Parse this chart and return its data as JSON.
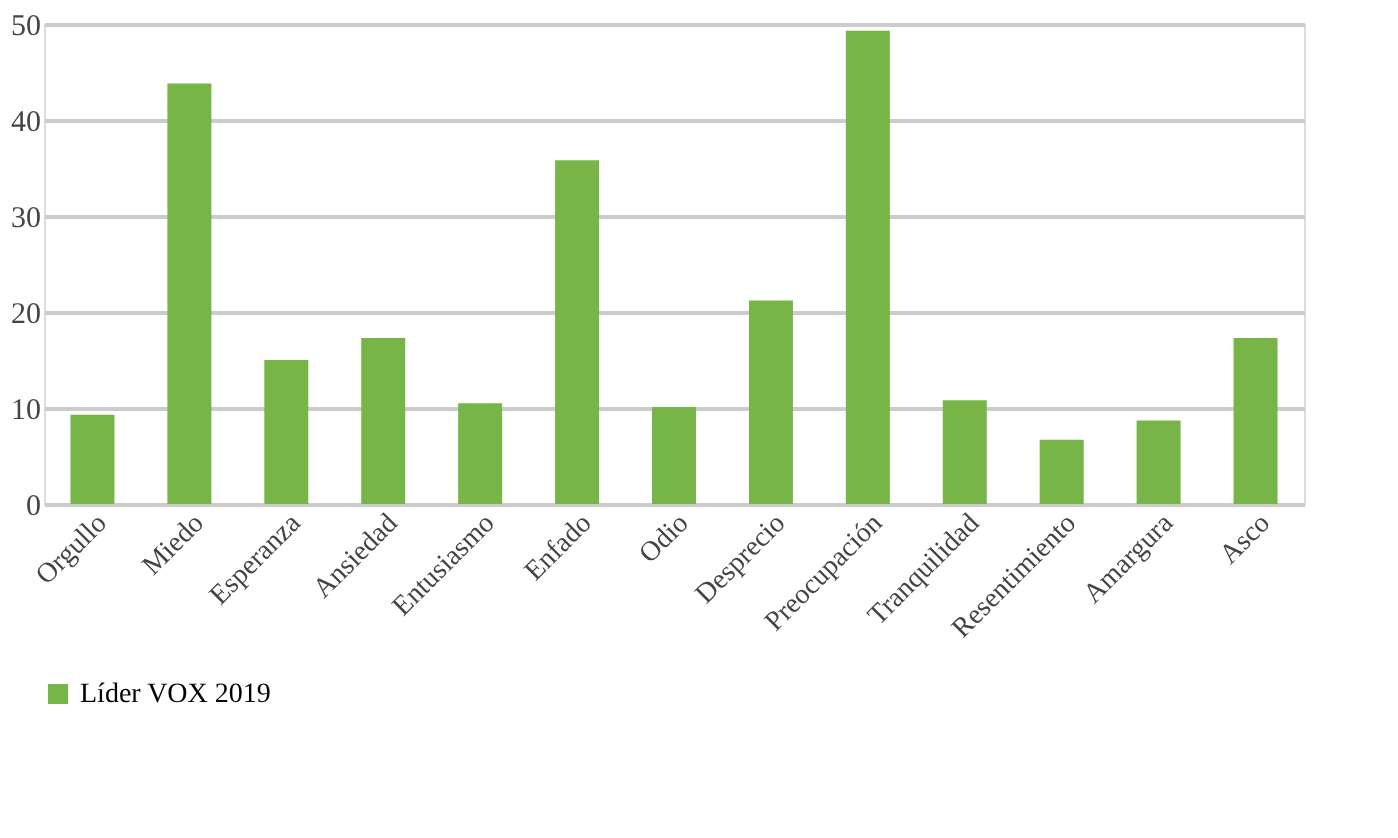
{
  "chart_data": {
    "type": "bar",
    "categories": [
      "Orgullo",
      "Miedo",
      "Esperanza",
      "Ansiedad",
      "Entusiasmo",
      "Enfado",
      "Odio",
      "Desprecio",
      "Preocupación",
      "Tranquilidad",
      "Resentimiento",
      "Amargura",
      "Asco"
    ],
    "series": [
      {
        "name": "Líder VOX 2019",
        "color": "#78b548",
        "values": [
          9.3,
          43.8,
          15,
          17.3,
          10.5,
          35.8,
          10.1,
          21.2,
          49.3,
          10.8,
          6.7,
          8.7,
          17.3
        ]
      }
    ],
    "ylim": [
      0,
      50
    ],
    "yticks": [
      0,
      10,
      20,
      30,
      40,
      50
    ],
    "grid": "y",
    "legend": "bottom"
  }
}
